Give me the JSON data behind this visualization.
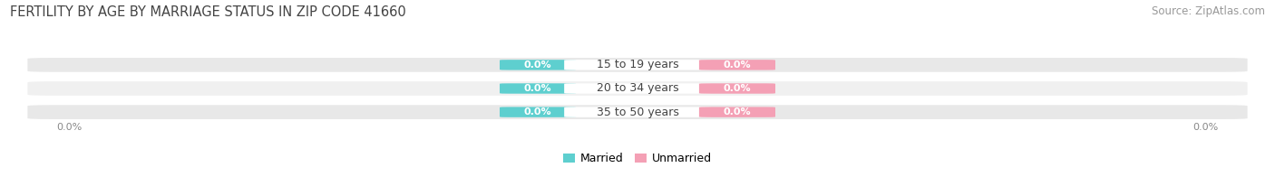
{
  "title": "FERTILITY BY AGE BY MARRIAGE STATUS IN ZIP CODE 41660",
  "source": "Source: ZipAtlas.com",
  "categories": [
    "15 to 19 years",
    "20 to 34 years",
    "35 to 50 years"
  ],
  "married_color": "#5ecfcf",
  "unmarried_color": "#f4a0b5",
  "bar_bg_color": "#e8e8e8",
  "bar_bg_color2": "#f0f0f0",
  "title_fontsize": 10.5,
  "source_fontsize": 8.5,
  "value_fontsize": 8,
  "category_fontsize": 9,
  "legend_fontsize": 9,
  "bg_color": "#ffffff",
  "axis_label_color": "#888888",
  "left_label": "0.0%",
  "right_label": "0.0%"
}
